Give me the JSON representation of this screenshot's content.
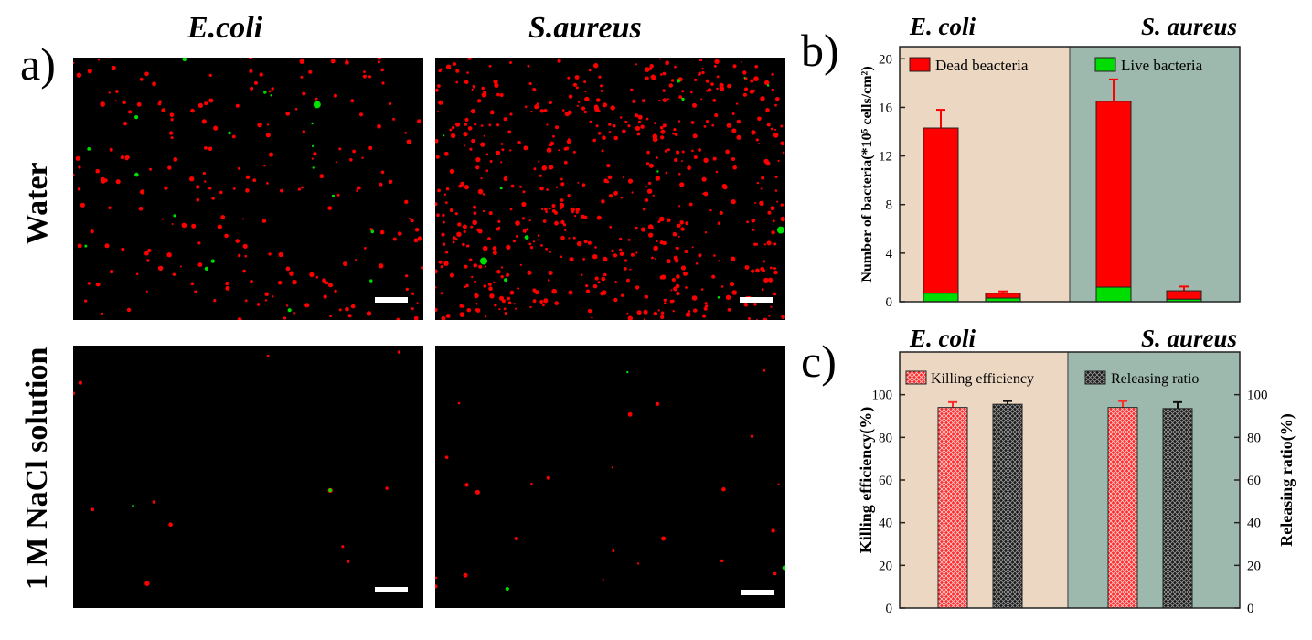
{
  "panels": {
    "a": {
      "letter": "a)",
      "columns": [
        "E.coli",
        "S.aureus"
      ],
      "rows": [
        "Water",
        "1 M NaCl solution"
      ]
    },
    "b": {
      "letter": "b)"
    },
    "c": {
      "letter": "c)"
    }
  },
  "colors": {
    "dead": "#ff0000",
    "live": "#00dd00",
    "killing": "#ff2a2a",
    "releasing": "#1a1a1a",
    "ecoli_bg": "#ecd7c2",
    "saureus_bg": "#9db9ae"
  },
  "chart_data": [
    {
      "id": "b",
      "type": "bar",
      "stacked": true,
      "group_labels": [
        "E. coli",
        "S. aureus"
      ],
      "ylabel": "Number of bacteria(*10⁵ cells/cm²)",
      "ylim": [
        0,
        21
      ],
      "yticks": [
        0,
        4,
        8,
        12,
        16,
        20
      ],
      "legend": {
        "dead": "Dead beacteria",
        "live": "Live bacteria"
      },
      "series": [
        {
          "name": "Live bacteria",
          "values": [
            0.7,
            0.3,
            1.2,
            0.2
          ]
        },
        {
          "name": "Dead beacteria",
          "values": [
            13.6,
            0.4,
            15.3,
            0.7
          ]
        }
      ],
      "errors": [
        1.5,
        0.15,
        1.8,
        0.35
      ]
    },
    {
      "id": "c",
      "type": "bar",
      "group_labels": [
        "E. coli",
        "S. aureus"
      ],
      "ylabel_left": "Killing efficiency(%)",
      "ylabel_right": "Releasing ratio(%)",
      "ylim": [
        0,
        120
      ],
      "yticks": [
        0,
        20,
        40,
        60,
        80,
        100
      ],
      "legend": {
        "killing": "Killing efficiency",
        "releasing": "Releasing ratio"
      },
      "series": [
        {
          "name": "Killing efficiency",
          "values": [
            94,
            94
          ],
          "errors": [
            2.5,
            3
          ]
        },
        {
          "name": "Releasing ratio",
          "values": [
            95.5,
            93.5
          ],
          "errors": [
            1.5,
            3
          ]
        }
      ]
    }
  ]
}
